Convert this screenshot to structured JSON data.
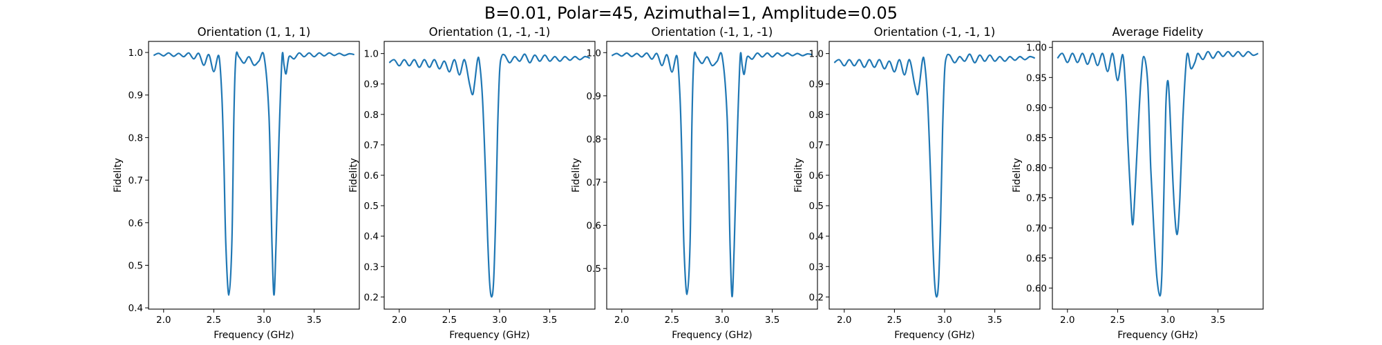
{
  "figure": {
    "suptitle": "B=0.01, Polar=45, Azimuthal=1, Amplitude=0.05"
  },
  "chart_data": [
    {
      "type": "line",
      "title": "Orientation (1, 1, 1)",
      "xlabel": "Frequency (GHz)",
      "ylabel": "Fidelity",
      "xlim": [
        1.85,
        3.95
      ],
      "ylim": [
        0.397,
        1.026
      ],
      "xticks": [
        "2.0",
        "2.5",
        "3.0",
        "3.5"
      ],
      "yticks": [
        "0.4",
        "0.5",
        "0.6",
        "0.7",
        "0.8",
        "0.9",
        "1.0"
      ],
      "series": [
        {
          "x": [
            1.9,
            1.95,
            2.0,
            2.05,
            2.1,
            2.15,
            2.2,
            2.25,
            2.3,
            2.35,
            2.4,
            2.45,
            2.5,
            2.55,
            2.58,
            2.6,
            2.62,
            2.65,
            2.68,
            2.7,
            2.72,
            2.75,
            2.8,
            2.85,
            2.9,
            2.95,
            3.0,
            3.05,
            3.08,
            3.1,
            3.12,
            3.15,
            3.18,
            3.2,
            3.22,
            3.25,
            3.3,
            3.35,
            3.4,
            3.45,
            3.5,
            3.55,
            3.6,
            3.65,
            3.7,
            3.75,
            3.8,
            3.85,
            3.9
          ],
          "y": [
            0.993,
            0.998,
            0.992,
            0.999,
            0.991,
            0.998,
            0.99,
            0.999,
            0.985,
            0.998,
            0.97,
            0.995,
            0.955,
            0.992,
            0.9,
            0.75,
            0.55,
            0.43,
            0.55,
            0.85,
            0.99,
            0.99,
            0.975,
            0.99,
            0.97,
            0.98,
            0.992,
            0.85,
            0.55,
            0.43,
            0.55,
            0.8,
            0.99,
            0.97,
            0.95,
            0.99,
            0.985,
            0.999,
            0.99,
            0.999,
            0.99,
            0.999,
            0.992,
            0.999,
            0.993,
            0.998,
            0.993,
            0.997,
            0.995
          ]
        }
      ]
    },
    {
      "type": "line",
      "title": "Orientation (1, -1, -1)",
      "xlabel": "Frequency (GHz)",
      "ylabel": "Fidelity",
      "xlim": [
        1.85,
        3.95
      ],
      "ylim": [
        0.16,
        1.04
      ],
      "xticks": [
        "2.0",
        "2.5",
        "3.0",
        "3.5"
      ],
      "yticks": [
        "0.2",
        "0.3",
        "0.4",
        "0.5",
        "0.6",
        "0.7",
        "0.8",
        "0.9",
        "1.0"
      ],
      "series": [
        {
          "x": [
            1.9,
            1.95,
            2.0,
            2.05,
            2.1,
            2.15,
            2.2,
            2.25,
            2.3,
            2.35,
            2.4,
            2.45,
            2.5,
            2.55,
            2.6,
            2.65,
            2.7,
            2.73,
            2.75,
            2.78,
            2.8,
            2.83,
            2.86,
            2.88,
            2.9,
            2.92,
            2.94,
            2.96,
            2.98,
            3.0,
            3.02,
            3.05,
            3.1,
            3.15,
            3.2,
            3.25,
            3.3,
            3.35,
            3.4,
            3.45,
            3.5,
            3.55,
            3.6,
            3.65,
            3.7,
            3.75,
            3.8,
            3.85,
            3.9
          ],
          "y": [
            0.97,
            0.98,
            0.96,
            0.98,
            0.96,
            0.98,
            0.955,
            0.98,
            0.955,
            0.98,
            0.95,
            0.975,
            0.94,
            0.98,
            0.93,
            0.98,
            0.9,
            0.865,
            0.9,
            0.98,
            0.97,
            0.85,
            0.6,
            0.4,
            0.25,
            0.2,
            0.25,
            0.45,
            0.75,
            0.94,
            0.99,
            0.995,
            0.97,
            0.99,
            0.975,
            0.998,
            0.97,
            0.995,
            0.975,
            0.995,
            0.975,
            0.99,
            0.975,
            0.99,
            0.978,
            0.99,
            0.98,
            0.99,
            0.985
          ]
        }
      ]
    },
    {
      "type": "line",
      "title": "Orientation (-1, 1, -1)",
      "xlabel": "Frequency (GHz)",
      "ylabel": "Fidelity",
      "xlim": [
        1.85,
        3.95
      ],
      "ylim": [
        0.406,
        1.026
      ],
      "xticks": [
        "2.0",
        "2.5",
        "3.0",
        "3.5"
      ],
      "yticks": [
        "0.5",
        "0.6",
        "0.7",
        "0.8",
        "0.9",
        "1.0"
      ],
      "series": [
        {
          "x": [
            1.9,
            1.95,
            2.0,
            2.05,
            2.1,
            2.15,
            2.2,
            2.25,
            2.3,
            2.35,
            2.4,
            2.45,
            2.5,
            2.55,
            2.58,
            2.6,
            2.62,
            2.65,
            2.68,
            2.7,
            2.72,
            2.75,
            2.8,
            2.85,
            2.9,
            2.95,
            3.0,
            3.05,
            3.08,
            3.1,
            3.12,
            3.15,
            3.18,
            3.2,
            3.22,
            3.25,
            3.3,
            3.35,
            3.4,
            3.45,
            3.5,
            3.55,
            3.6,
            3.65,
            3.7,
            3.75,
            3.8,
            3.85,
            3.9
          ],
          "y": [
            0.993,
            0.998,
            0.992,
            0.999,
            0.991,
            0.998,
            0.99,
            0.999,
            0.985,
            0.998,
            0.97,
            0.995,
            0.955,
            0.992,
            0.9,
            0.75,
            0.55,
            0.44,
            0.55,
            0.85,
            0.99,
            0.99,
            0.975,
            0.99,
            0.97,
            0.98,
            0.992,
            0.85,
            0.55,
            0.435,
            0.55,
            0.8,
            0.99,
            0.97,
            0.95,
            0.99,
            0.985,
            0.999,
            0.99,
            0.999,
            0.99,
            0.999,
            0.992,
            0.999,
            0.993,
            0.998,
            0.993,
            0.997,
            0.995
          ]
        }
      ]
    },
    {
      "type": "line",
      "title": "Orientation (-1, -1, 1)",
      "xlabel": "Frequency (GHz)",
      "ylabel": "Fidelity",
      "xlim": [
        1.85,
        3.95
      ],
      "ylim": [
        0.16,
        1.04
      ],
      "xticks": [
        "2.0",
        "2.5",
        "3.0",
        "3.5"
      ],
      "yticks": [
        "0.2",
        "0.3",
        "0.4",
        "0.5",
        "0.6",
        "0.7",
        "0.8",
        "0.9",
        "1.0"
      ],
      "series": [
        {
          "x": [
            1.9,
            1.95,
            2.0,
            2.05,
            2.1,
            2.15,
            2.2,
            2.25,
            2.3,
            2.35,
            2.4,
            2.45,
            2.5,
            2.55,
            2.6,
            2.65,
            2.7,
            2.73,
            2.75,
            2.78,
            2.8,
            2.83,
            2.86,
            2.88,
            2.9,
            2.92,
            2.94,
            2.96,
            2.98,
            3.0,
            3.02,
            3.05,
            3.1,
            3.15,
            3.2,
            3.25,
            3.3,
            3.35,
            3.4,
            3.45,
            3.5,
            3.55,
            3.6,
            3.65,
            3.7,
            3.75,
            3.8,
            3.85,
            3.9
          ],
          "y": [
            0.97,
            0.98,
            0.96,
            0.98,
            0.96,
            0.98,
            0.955,
            0.98,
            0.955,
            0.98,
            0.95,
            0.975,
            0.94,
            0.98,
            0.93,
            0.98,
            0.9,
            0.865,
            0.9,
            0.98,
            0.97,
            0.85,
            0.6,
            0.4,
            0.25,
            0.2,
            0.25,
            0.45,
            0.75,
            0.94,
            0.99,
            0.995,
            0.97,
            0.99,
            0.975,
            0.998,
            0.97,
            0.995,
            0.975,
            0.995,
            0.975,
            0.99,
            0.975,
            0.99,
            0.978,
            0.99,
            0.98,
            0.99,
            0.985
          ]
        }
      ]
    },
    {
      "type": "line",
      "title": "Average Fidelity",
      "xlabel": "Frequency (GHz)",
      "ylabel": "Fidelity",
      "xlim": [
        1.85,
        3.95
      ],
      "ylim": [
        0.565,
        1.01
      ],
      "xticks": [
        "2.0",
        "2.5",
        "3.0",
        "3.5"
      ],
      "yticks": [
        "0.60",
        "0.65",
        "0.70",
        "0.75",
        "0.80",
        "0.85",
        "0.90",
        "0.95",
        "1.00"
      ],
      "series": [
        {
          "x": [
            1.9,
            1.95,
            2.0,
            2.05,
            2.1,
            2.15,
            2.2,
            2.25,
            2.3,
            2.35,
            2.4,
            2.45,
            2.5,
            2.55,
            2.58,
            2.6,
            2.63,
            2.65,
            2.67,
            2.7,
            2.73,
            2.76,
            2.8,
            2.83,
            2.86,
            2.89,
            2.92,
            2.94,
            2.96,
            2.98,
            3.0,
            3.02,
            3.05,
            3.08,
            3.1,
            3.12,
            3.15,
            3.18,
            3.2,
            3.23,
            3.27,
            3.3,
            3.35,
            3.4,
            3.45,
            3.5,
            3.55,
            3.6,
            3.65,
            3.7,
            3.75,
            3.8,
            3.85,
            3.9
          ],
          "y": [
            0.982,
            0.99,
            0.975,
            0.99,
            0.975,
            0.99,
            0.972,
            0.99,
            0.97,
            0.99,
            0.96,
            0.99,
            0.945,
            0.988,
            0.93,
            0.85,
            0.75,
            0.705,
            0.75,
            0.85,
            0.94,
            0.985,
            0.94,
            0.8,
            0.7,
            0.62,
            0.587,
            0.62,
            0.75,
            0.9,
            0.945,
            0.9,
            0.78,
            0.7,
            0.695,
            0.75,
            0.88,
            0.97,
            0.99,
            0.965,
            0.975,
            0.99,
            0.98,
            0.993,
            0.982,
            0.993,
            0.985,
            0.993,
            0.985,
            0.993,
            0.985,
            0.993,
            0.987,
            0.99
          ]
        }
      ]
    }
  ]
}
